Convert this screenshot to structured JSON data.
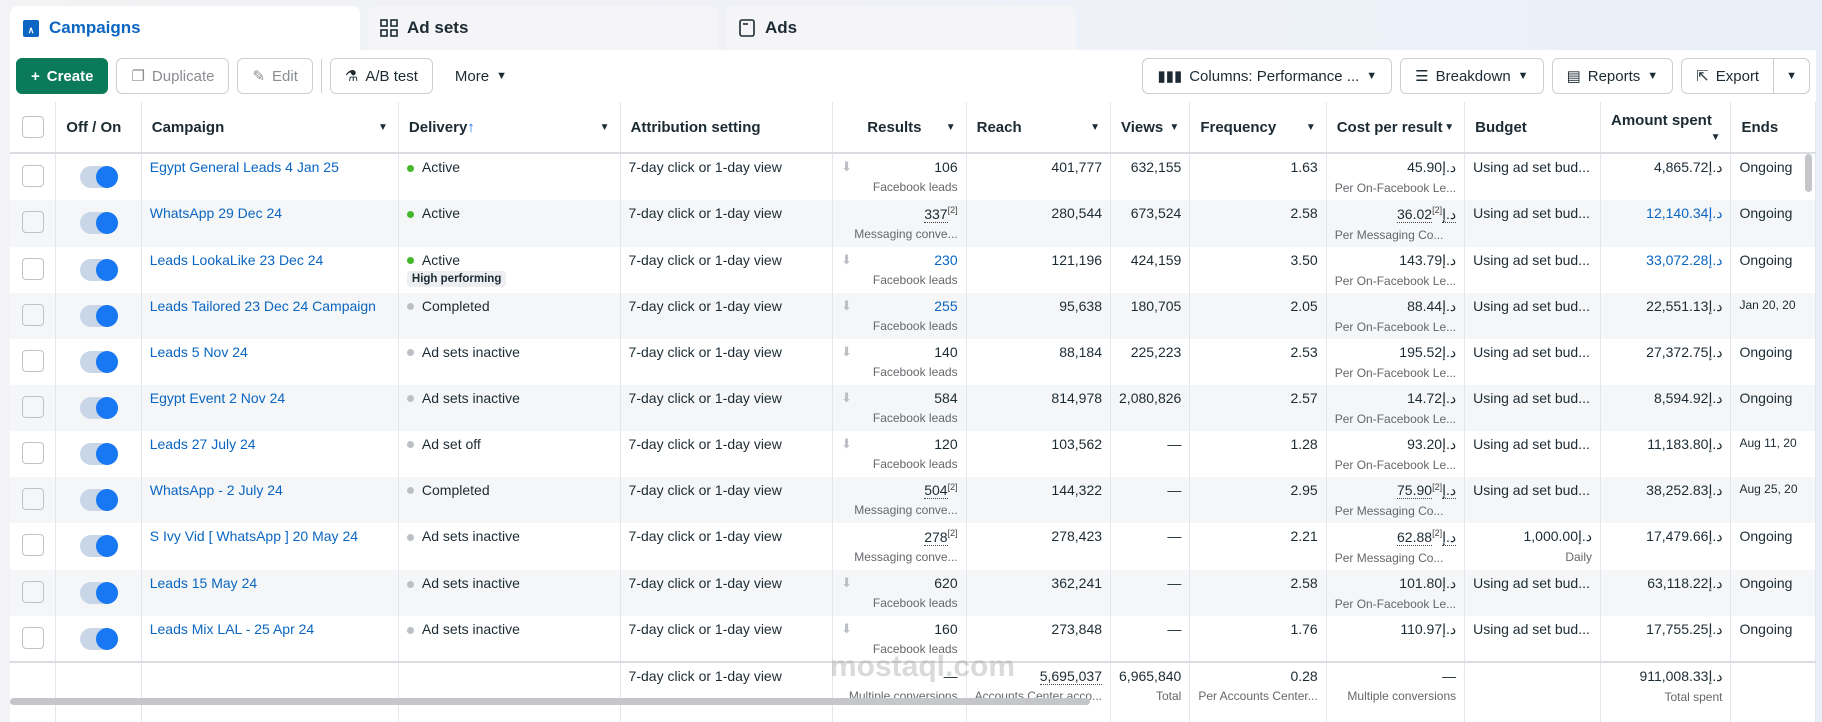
{
  "tabs": [
    {
      "label": "Campaigns",
      "icon": "campaign-icon"
    },
    {
      "label": "Ad sets",
      "icon": "adsets-grid-icon"
    },
    {
      "label": "Ads",
      "icon": "ad-window-icon"
    }
  ],
  "toolbar": {
    "create": "Create",
    "duplicate": "Duplicate",
    "edit": "Edit",
    "ab_test": "A/B test",
    "more": "More",
    "columns": "Columns: Performance ...",
    "breakdown": "Breakdown",
    "reports": "Reports",
    "export": "Export"
  },
  "columns": [
    "Off / On",
    "Campaign",
    "Delivery",
    "Attribution setting",
    "Results",
    "Reach",
    "Views",
    "Frequency",
    "Cost per result",
    "Budget",
    "Amount spent",
    "Ends"
  ],
  "currency": "د.إ",
  "colors": {
    "active": "#42b72a",
    "inactive": "#bcc0c4",
    "link": "#0a66c2",
    "primary": "#0a7a5a"
  },
  "rows": [
    {
      "campaign": "Egypt General Leads 4 Jan 25",
      "delivery": "Active",
      "status": "active",
      "attribution": "7-day click or 1-day view",
      "results": "106",
      "results_link": false,
      "results_sub": "Facebook leads",
      "footnote": false,
      "reach": "401,777",
      "views": "632,155",
      "frequency": "1.63",
      "cost": "45.90",
      "cost_sub": "Per On-Facebook Le...",
      "budget": "Using ad set bud...",
      "budget_sub": "",
      "spent": "4,865.72",
      "spent_link": false,
      "ends": "Ongoing"
    },
    {
      "campaign": "WhatsApp 29 Dec 24",
      "delivery": "Active",
      "status": "active",
      "attribution": "7-day click or 1-day view",
      "results": "337",
      "results_link": false,
      "results_sub": "Messaging conve...",
      "footnote": true,
      "reach": "280,544",
      "views": "673,524",
      "frequency": "2.58",
      "cost": "36.02",
      "cost_sub": "Per Messaging Co...",
      "budget": "Using ad set bud...",
      "budget_sub": "",
      "spent": "12,140.34",
      "spent_link": true,
      "ends": "Ongoing"
    },
    {
      "campaign": "Leads LookaLike 23 Dec 24",
      "delivery": "Active",
      "status": "active",
      "badge": "High performing",
      "attribution": "7-day click or 1-day view",
      "results": "230",
      "results_link": true,
      "results_sub": "Facebook leads",
      "footnote": false,
      "reach": "121,196",
      "views": "424,159",
      "frequency": "3.50",
      "cost": "143.79",
      "cost_sub": "Per On-Facebook Le...",
      "budget": "Using ad set bud...",
      "budget_sub": "",
      "spent": "33,072.28",
      "spent_link": true,
      "ends": "Ongoing"
    },
    {
      "campaign": "Leads Tailored 23 Dec 24 Campaign",
      "delivery": "Completed",
      "status": "inactive",
      "attribution": "7-day click or 1-day view",
      "results": "255",
      "results_link": true,
      "results_sub": "Facebook leads",
      "footnote": false,
      "reach": "95,638",
      "views": "180,705",
      "frequency": "2.05",
      "cost": "88.44",
      "cost_sub": "Per On-Facebook Le...",
      "budget": "Using ad set bud...",
      "budget_sub": "",
      "spent": "22,551.13",
      "spent_link": false,
      "ends": "Jan 20, 20"
    },
    {
      "campaign": "Leads 5 Nov 24",
      "delivery": "Ad sets inactive",
      "status": "inactive",
      "attribution": "7-day click or 1-day view",
      "results": "140",
      "results_link": false,
      "results_sub": "Facebook leads",
      "footnote": false,
      "reach": "88,184",
      "views": "225,223",
      "frequency": "2.53",
      "cost": "195.52",
      "cost_sub": "Per On-Facebook Le...",
      "budget": "Using ad set bud...",
      "budget_sub": "",
      "spent": "27,372.75",
      "spent_link": false,
      "ends": "Ongoing"
    },
    {
      "campaign": "Egypt Event 2 Nov 24",
      "delivery": "Ad sets inactive",
      "status": "inactive",
      "attribution": "7-day click or 1-day view",
      "results": "584",
      "results_link": false,
      "results_sub": "Facebook leads",
      "footnote": false,
      "reach": "814,978",
      "views": "2,080,826",
      "frequency": "2.57",
      "cost": "14.72",
      "cost_sub": "Per On-Facebook Le...",
      "budget": "Using ad set bud...",
      "budget_sub": "",
      "spent": "8,594.92",
      "spent_link": false,
      "ends": "Ongoing"
    },
    {
      "campaign": "Leads 27 July 24",
      "delivery": "Ad set off",
      "status": "inactive",
      "attribution": "7-day click or 1-day view",
      "results": "120",
      "results_link": false,
      "results_sub": "Facebook leads",
      "footnote": false,
      "reach": "103,562",
      "views": "—",
      "frequency": "1.28",
      "cost": "93.20",
      "cost_sub": "Per On-Facebook Le...",
      "budget": "Using ad set bud...",
      "budget_sub": "",
      "spent": "11,183.80",
      "spent_link": false,
      "ends": "Aug 11, 20"
    },
    {
      "campaign": "WhatsApp - 2 July 24",
      "delivery": "Completed",
      "status": "inactive",
      "attribution": "7-day click or 1-day view",
      "results": "504",
      "results_link": false,
      "results_sub": "Messaging conve...",
      "footnote": true,
      "reach": "144,322",
      "views": "—",
      "frequency": "2.95",
      "cost": "75.90",
      "cost_sub": "Per Messaging Co...",
      "budget": "Using ad set bud...",
      "budget_sub": "",
      "spent": "38,252.83",
      "spent_link": false,
      "ends": "Aug 25, 20"
    },
    {
      "campaign": "S Ivy Vid [ WhatsApp ] 20 May 24",
      "delivery": "Ad sets inactive",
      "status": "inactive",
      "attribution": "7-day click or 1-day view",
      "results": "278",
      "results_link": false,
      "results_sub": "Messaging conve...",
      "footnote": true,
      "reach": "278,423",
      "views": "—",
      "frequency": "2.21",
      "cost": "62.88",
      "cost_sub": "Per Messaging Co...",
      "budget": "1,000.00",
      "budget_currency": true,
      "budget_sub": "Daily",
      "spent": "17,479.66",
      "spent_link": false,
      "ends": "Ongoing"
    },
    {
      "campaign": "Leads 15 May 24",
      "delivery": "Ad sets inactive",
      "status": "inactive",
      "attribution": "7-day click or 1-day view",
      "results": "620",
      "results_link": false,
      "results_sub": "Facebook leads",
      "footnote": false,
      "reach": "362,241",
      "views": "—",
      "frequency": "2.58",
      "cost": "101.80",
      "cost_sub": "Per On-Facebook Le...",
      "budget": "Using ad set bud...",
      "budget_sub": "",
      "spent": "63,118.22",
      "spent_link": false,
      "ends": "Ongoing"
    },
    {
      "campaign": "Leads Mix LAL - 25 Apr 24",
      "delivery": "Ad sets inactive",
      "status": "inactive",
      "attribution": "7-day click or 1-day view",
      "results": "160",
      "results_link": false,
      "results_sub": "Facebook leads",
      "footnote": false,
      "reach": "273,848",
      "views": "—",
      "frequency": "1.76",
      "cost": "110.97",
      "cost_sub": "",
      "budget": "Using ad set bud...",
      "budget_sub": "",
      "spent": "17,755.25",
      "spent_link": false,
      "ends": "Ongoing"
    }
  ],
  "footnote_mark": "[2]",
  "totals": {
    "attribution": "7-day click or 1-day view",
    "results": "—",
    "results_sub": "Multiple conversions",
    "reach": "5,695,037",
    "reach_sub": "Accounts Center acco...",
    "views": "6,965,840",
    "views_sub": "Total",
    "frequency": "0.28",
    "frequency_sub": "Per Accounts Center...",
    "cost": "—",
    "cost_sub": "Multiple conversions",
    "spent": "911,008.33",
    "spent_sub": "Total spent"
  },
  "watermark": "mostaql.com"
}
